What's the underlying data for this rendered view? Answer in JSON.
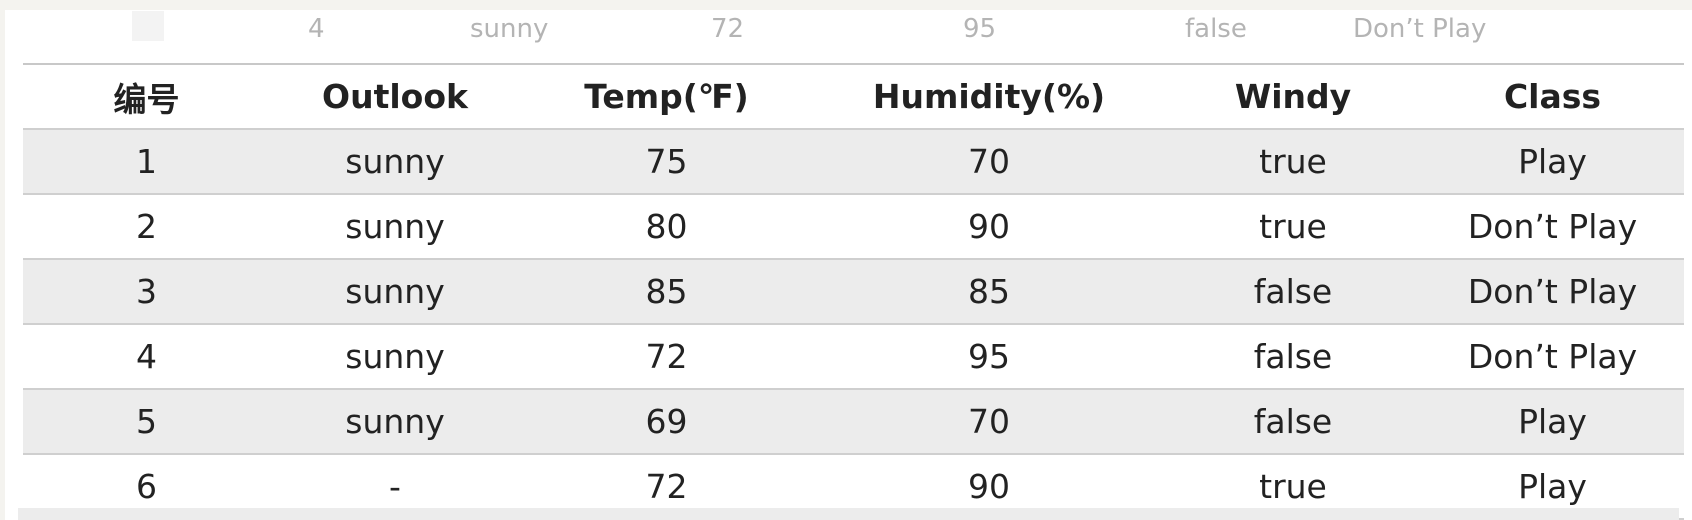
{
  "ghost_row": [
    "4",
    "sunny",
    "72",
    "95",
    "false",
    "Don’t Play"
  ],
  "table": {
    "headers": [
      "编号",
      "Outlook",
      "Temp(℉)",
      "Humidity(%)",
      "Windy",
      "Class"
    ],
    "rows": [
      [
        "1",
        "sunny",
        "75",
        "70",
        "true",
        "Play"
      ],
      [
        "2",
        "sunny",
        "80",
        "90",
        "true",
        "Don’t Play"
      ],
      [
        "3",
        "sunny",
        "85",
        "85",
        "false",
        "Don’t Play"
      ],
      [
        "4",
        "sunny",
        "72",
        "95",
        "false",
        "Don’t Play"
      ],
      [
        "5",
        "sunny",
        "69",
        "70",
        "false",
        "Play"
      ],
      [
        "6",
        "-",
        "72",
        "90",
        "true",
        "Play"
      ]
    ]
  },
  "colors": {
    "page_background": "#f4f3ef",
    "row_shade": "#ececec",
    "grid_line": "#cfcfcf",
    "ghost_text": "#b4b4b4"
  }
}
